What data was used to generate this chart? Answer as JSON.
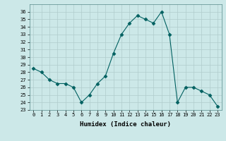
{
  "x": [
    0,
    1,
    2,
    3,
    4,
    5,
    6,
    7,
    8,
    9,
    10,
    11,
    12,
    13,
    14,
    15,
    16,
    17,
    18,
    19,
    20,
    21,
    22,
    23
  ],
  "y": [
    28.5,
    28.0,
    27.0,
    26.5,
    26.5,
    26.0,
    24.0,
    25.0,
    26.5,
    27.5,
    30.5,
    33.0,
    34.5,
    35.5,
    35.0,
    34.5,
    36.0,
    33.0,
    24.0,
    26.0,
    26.0,
    25.5,
    25.0,
    23.5
  ],
  "line_color": "#006060",
  "marker": "D",
  "marker_size": 2.5,
  "bg_color": "#cce8e8",
  "grid_color": "#b0cccc",
  "xlabel": "Humidex (Indice chaleur)",
  "xlim": [
    -0.5,
    23.5
  ],
  "ylim": [
    23,
    37
  ],
  "yticks": [
    23,
    24,
    25,
    26,
    27,
    28,
    29,
    30,
    31,
    32,
    33,
    34,
    35,
    36
  ],
  "xticks": [
    0,
    1,
    2,
    3,
    4,
    5,
    6,
    7,
    8,
    9,
    10,
    11,
    12,
    13,
    14,
    15,
    16,
    17,
    18,
    19,
    20,
    21,
    22,
    23
  ]
}
